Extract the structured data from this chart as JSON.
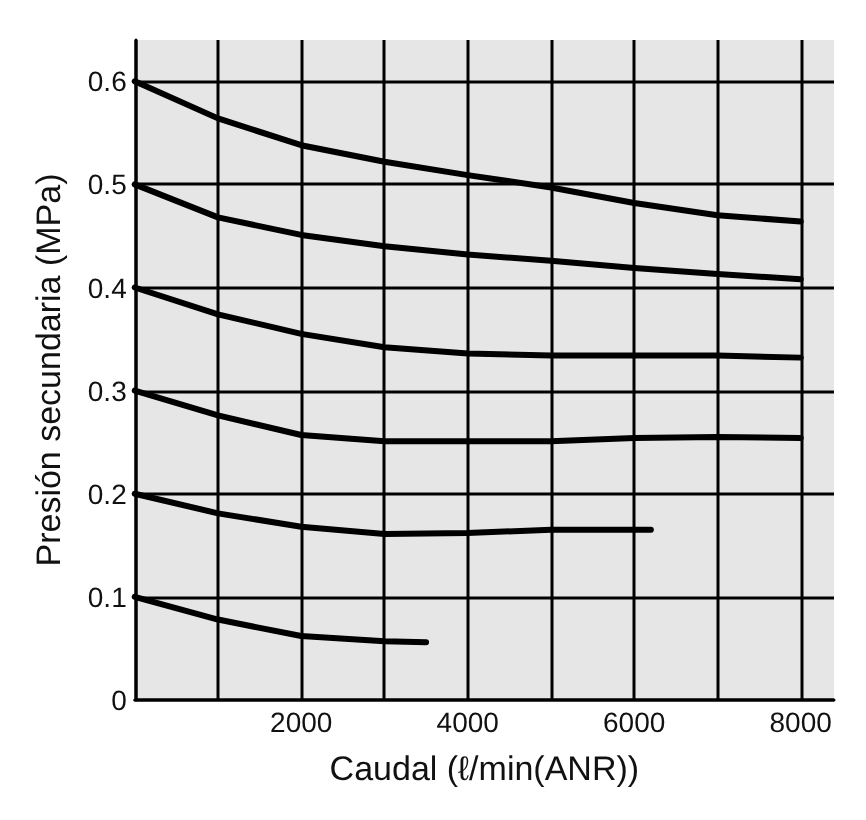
{
  "chart_data": {
    "type": "line",
    "xlabel": "Caudal (ℓ/min(ANR))",
    "ylabel": "Presión secundaria (MPa)",
    "xlim": [
      0,
      8400
    ],
    "ylim": [
      0,
      0.64
    ],
    "xticks": [
      {
        "value": 0,
        "label": null
      },
      {
        "value": 1000,
        "label": null
      },
      2000,
      {
        "value": 3000,
        "label": null
      },
      4000,
      {
        "value": 5000,
        "label": null
      },
      6000,
      {
        "value": 7000,
        "label": null
      },
      8000
    ],
    "yticks": [
      0,
      0.1,
      0.2,
      0.3,
      0.4,
      0.5,
      0.6
    ],
    "grid": true,
    "marker": "none",
    "line_style": "solid",
    "series": [
      {
        "color": "#000000",
        "x": [
          0,
          1000,
          2000,
          3000,
          4000,
          5000,
          6000,
          7000,
          8000
        ],
        "values": [
          0.6,
          0.564,
          0.538,
          0.522,
          0.509,
          0.497,
          0.482,
          0.47,
          0.464
        ]
      },
      {
        "color": "#000000",
        "x": [
          0,
          1000,
          2000,
          3000,
          4000,
          5000,
          6000,
          7000,
          8000
        ],
        "values": [
          0.5,
          0.468,
          0.451,
          0.44,
          0.432,
          0.426,
          0.419,
          0.413,
          0.408
        ]
      },
      {
        "color": "#000000",
        "x": [
          0,
          1000,
          2000,
          3000,
          4000,
          5000,
          6000,
          7000,
          8000
        ],
        "values": [
          0.4,
          0.374,
          0.355,
          0.342,
          0.336,
          0.334,
          0.334,
          0.334,
          0.332
        ]
      },
      {
        "color": "#000000",
        "x": [
          0,
          1000,
          2000,
          3000,
          4000,
          5000,
          6000,
          7000,
          8000
        ],
        "values": [
          0.3,
          0.276,
          0.257,
          0.251,
          0.251,
          0.251,
          0.254,
          0.255,
          0.254
        ]
      },
      {
        "color": "#000000",
        "x": [
          0,
          1000,
          2000,
          3000,
          4000,
          5000,
          6000,
          6200
        ],
        "values": [
          0.2,
          0.181,
          0.168,
          0.161,
          0.162,
          0.165,
          0.165,
          0.165
        ]
      },
      {
        "color": "#000000",
        "x": [
          0,
          1000,
          2000,
          3000,
          3500
        ],
        "values": [
          0.1,
          0.078,
          0.062,
          0.057,
          0.056
        ]
      }
    ]
  }
}
